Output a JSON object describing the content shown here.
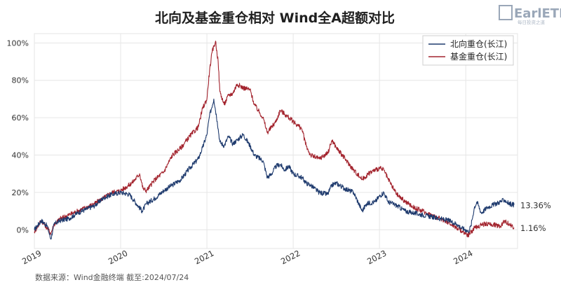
{
  "logo": {
    "text": "EarlETF",
    "sub": "每日投资之道"
  },
  "source": "数据来源：Wind金融终端 截至:2024/07/24",
  "chart_data": {
    "type": "line",
    "title": "北向及基金重仓相对 Wind全A超额对比",
    "yaxis": {
      "min": -10,
      "max": 105,
      "ticks": [
        0,
        20,
        40,
        60,
        80,
        100
      ],
      "format": "percent"
    },
    "xaxis": {
      "start": 2019.0,
      "end": 2024.6,
      "ticks": [
        "2019",
        "2020",
        "2021",
        "2022",
        "2023",
        "2024"
      ],
      "tick_values": [
        2019,
        2020,
        2021,
        2022,
        2023,
        2024
      ]
    },
    "grid": true,
    "legend": {
      "position": "top-right"
    },
    "colors": {
      "north": "#1f3b6e",
      "fund": "#a3242e"
    },
    "series": [
      {
        "name": "北向重仓(长江)",
        "color": "#1f3b6e",
        "end_label": "13.36%",
        "points": [
          [
            2019.0,
            0
          ],
          [
            2019.08,
            5
          ],
          [
            2019.15,
            2
          ],
          [
            2019.19,
            -5
          ],
          [
            2019.23,
            3
          ],
          [
            2019.3,
            5
          ],
          [
            2019.4,
            6
          ],
          [
            2019.5,
            9
          ],
          [
            2019.6,
            11
          ],
          [
            2019.7,
            13
          ],
          [
            2019.8,
            17
          ],
          [
            2019.9,
            19
          ],
          [
            2020.0,
            20
          ],
          [
            2020.1,
            19
          ],
          [
            2020.15,
            16
          ],
          [
            2020.25,
            10
          ],
          [
            2020.3,
            14
          ],
          [
            2020.4,
            17
          ],
          [
            2020.5,
            21
          ],
          [
            2020.6,
            24
          ],
          [
            2020.7,
            27
          ],
          [
            2020.8,
            33
          ],
          [
            2020.9,
            38
          ],
          [
            2020.95,
            44
          ],
          [
            2021.0,
            51
          ],
          [
            2021.03,
            61
          ],
          [
            2021.08,
            70
          ],
          [
            2021.12,
            58
          ],
          [
            2021.15,
            47
          ],
          [
            2021.2,
            45
          ],
          [
            2021.25,
            50
          ],
          [
            2021.3,
            46
          ],
          [
            2021.35,
            48
          ],
          [
            2021.42,
            51
          ],
          [
            2021.5,
            45
          ],
          [
            2021.55,
            40
          ],
          [
            2021.65,
            37
          ],
          [
            2021.7,
            28
          ],
          [
            2021.75,
            30
          ],
          [
            2021.8,
            34
          ],
          [
            2021.85,
            35
          ],
          [
            2021.9,
            32
          ],
          [
            2021.95,
            34
          ],
          [
            2022.0,
            30
          ],
          [
            2022.1,
            28
          ],
          [
            2022.15,
            25
          ],
          [
            2022.2,
            24
          ],
          [
            2022.3,
            20
          ],
          [
            2022.4,
            19
          ],
          [
            2022.45,
            24
          ],
          [
            2022.5,
            25
          ],
          [
            2022.6,
            22
          ],
          [
            2022.7,
            20
          ],
          [
            2022.8,
            10
          ],
          [
            2022.85,
            14
          ],
          [
            2022.95,
            15
          ],
          [
            2023.0,
            18
          ],
          [
            2023.05,
            20
          ],
          [
            2023.1,
            15
          ],
          [
            2023.2,
            13
          ],
          [
            2023.3,
            10
          ],
          [
            2023.4,
            9
          ],
          [
            2023.5,
            8
          ],
          [
            2023.6,
            7
          ],
          [
            2023.7,
            6
          ],
          [
            2023.8,
            5
          ],
          [
            2023.9,
            3
          ],
          [
            2023.95,
            1
          ],
          [
            2024.0,
            0
          ],
          [
            2024.03,
            -1
          ],
          [
            2024.06,
            2
          ],
          [
            2024.1,
            12
          ],
          [
            2024.13,
            15
          ],
          [
            2024.18,
            9
          ],
          [
            2024.25,
            12
          ],
          [
            2024.35,
            14
          ],
          [
            2024.45,
            16
          ],
          [
            2024.5,
            14
          ],
          [
            2024.56,
            13.36
          ]
        ]
      },
      {
        "name": "基金重仓(长江)",
        "color": "#a3242e",
        "end_label": "1.16%",
        "points": [
          [
            2019.0,
            -1
          ],
          [
            2019.08,
            5
          ],
          [
            2019.15,
            1
          ],
          [
            2019.19,
            -2
          ],
          [
            2019.23,
            3
          ],
          [
            2019.3,
            6
          ],
          [
            2019.4,
            8
          ],
          [
            2019.5,
            10
          ],
          [
            2019.6,
            12
          ],
          [
            2019.7,
            14
          ],
          [
            2019.8,
            17
          ],
          [
            2019.9,
            20
          ],
          [
            2020.0,
            21
          ],
          [
            2020.1,
            24
          ],
          [
            2020.15,
            26
          ],
          [
            2020.22,
            30
          ],
          [
            2020.26,
            22
          ],
          [
            2020.3,
            21
          ],
          [
            2020.4,
            27
          ],
          [
            2020.5,
            31
          ],
          [
            2020.6,
            40
          ],
          [
            2020.7,
            44
          ],
          [
            2020.8,
            50
          ],
          [
            2020.9,
            55
          ],
          [
            2020.95,
            65
          ],
          [
            2021.0,
            70
          ],
          [
            2021.03,
            85
          ],
          [
            2021.06,
            95
          ],
          [
            2021.1,
            101
          ],
          [
            2021.13,
            90
          ],
          [
            2021.15,
            74
          ],
          [
            2021.2,
            67
          ],
          [
            2021.25,
            72
          ],
          [
            2021.3,
            73
          ],
          [
            2021.35,
            78
          ],
          [
            2021.42,
            76
          ],
          [
            2021.5,
            75
          ],
          [
            2021.55,
            67
          ],
          [
            2021.65,
            60
          ],
          [
            2021.7,
            52
          ],
          [
            2021.75,
            55
          ],
          [
            2021.8,
            58
          ],
          [
            2021.85,
            64
          ],
          [
            2021.9,
            62
          ],
          [
            2021.95,
            60
          ],
          [
            2022.0,
            58
          ],
          [
            2022.1,
            54
          ],
          [
            2022.15,
            45
          ],
          [
            2022.2,
            40
          ],
          [
            2022.3,
            38
          ],
          [
            2022.4,
            41
          ],
          [
            2022.45,
            48
          ],
          [
            2022.5,
            44
          ],
          [
            2022.6,
            38
          ],
          [
            2022.7,
            32
          ],
          [
            2022.8,
            27
          ],
          [
            2022.9,
            31
          ],
          [
            2023.0,
            33
          ],
          [
            2023.05,
            32
          ],
          [
            2023.1,
            27
          ],
          [
            2023.2,
            19
          ],
          [
            2023.3,
            15
          ],
          [
            2023.4,
            12
          ],
          [
            2023.5,
            10
          ],
          [
            2023.6,
            8
          ],
          [
            2023.7,
            6
          ],
          [
            2023.8,
            4
          ],
          [
            2023.9,
            1
          ],
          [
            2024.0,
            -2
          ],
          [
            2024.03,
            -3
          ],
          [
            2024.1,
            1
          ],
          [
            2024.2,
            3
          ],
          [
            2024.3,
            3
          ],
          [
            2024.4,
            2
          ],
          [
            2024.45,
            5
          ],
          [
            2024.5,
            3
          ],
          [
            2024.56,
            1.16
          ]
        ]
      }
    ]
  }
}
